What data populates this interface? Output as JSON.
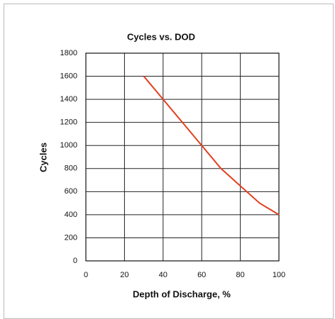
{
  "chart_data": {
    "type": "line",
    "title": "Cycles vs. DOD",
    "xlabel": "Depth of Discharge, %",
    "ylabel": "Cycles",
    "x": [
      30,
      40,
      50,
      60,
      70,
      80,
      90,
      100
    ],
    "values": [
      1600,
      1400,
      1200,
      1000,
      800,
      650,
      500,
      400
    ],
    "color": "#e2401f",
    "xlim": [
      0,
      100
    ],
    "xticks": [
      0,
      20,
      40,
      60,
      80,
      100
    ],
    "ylim": [
      0,
      1800
    ],
    "yticks": [
      0,
      200,
      400,
      600,
      800,
      1000,
      1200,
      1400,
      1600,
      1800
    ],
    "grid": true
  }
}
